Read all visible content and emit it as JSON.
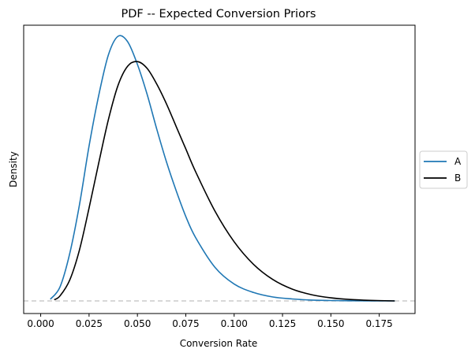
{
  "chart_data": {
    "type": "line",
    "title": "PDF -- Expected Conversion Priors",
    "xlabel": "Conversion Rate",
    "ylabel": "Density",
    "xlim": [
      -0.0088,
      0.1935
    ],
    "x_ticks": [
      "0.000",
      "0.025",
      "0.050",
      "0.075",
      "0.100",
      "0.125",
      "0.150",
      "0.175"
    ],
    "x_tick_values": [
      0,
      0.025,
      0.05,
      0.075,
      0.1,
      0.125,
      0.15,
      0.175
    ],
    "y_ticks_shown": false,
    "baseline": {
      "y": 0,
      "style": "dashed",
      "color": "#cccccc"
    },
    "legend": {
      "placement": "right-outside",
      "entries": [
        "A",
        "B"
      ]
    },
    "series": [
      {
        "name": "A",
        "color": "#1f77b4",
        "x": [
          0.005,
          0.01,
          0.015,
          0.02,
          0.025,
          0.03,
          0.035,
          0.04,
          0.045,
          0.05,
          0.055,
          0.06,
          0.065,
          0.07,
          0.075,
          0.08,
          0.09,
          0.1,
          0.11,
          0.12,
          0.13,
          0.14,
          0.15,
          0.16,
          0.17,
          0.183
        ],
        "y": [
          0.3,
          2.5,
          8.4,
          17.0,
          27.5,
          36.5,
          43.7,
          47.0,
          46.0,
          42.0,
          36.7,
          30.5,
          24.7,
          19.6,
          15.0,
          11.3,
          6.0,
          3.0,
          1.5,
          0.7,
          0.35,
          0.15,
          0.07,
          0.03,
          0.01,
          0.0
        ]
      },
      {
        "name": "B",
        "color": "#000000",
        "x": [
          0.007,
          0.01,
          0.015,
          0.02,
          0.025,
          0.03,
          0.035,
          0.04,
          0.045,
          0.05,
          0.055,
          0.06,
          0.065,
          0.07,
          0.075,
          0.08,
          0.09,
          0.1,
          0.11,
          0.12,
          0.13,
          0.14,
          0.15,
          0.16,
          0.17,
          0.183
        ],
        "y": [
          0.2,
          0.9,
          3.7,
          9.0,
          16.5,
          24.5,
          32.2,
          38.3,
          41.7,
          42.5,
          41.3,
          38.5,
          35.0,
          31.0,
          27.0,
          23.0,
          16.0,
          10.5,
          6.5,
          3.8,
          2.1,
          1.1,
          0.55,
          0.25,
          0.1,
          0.0
        ]
      }
    ]
  }
}
